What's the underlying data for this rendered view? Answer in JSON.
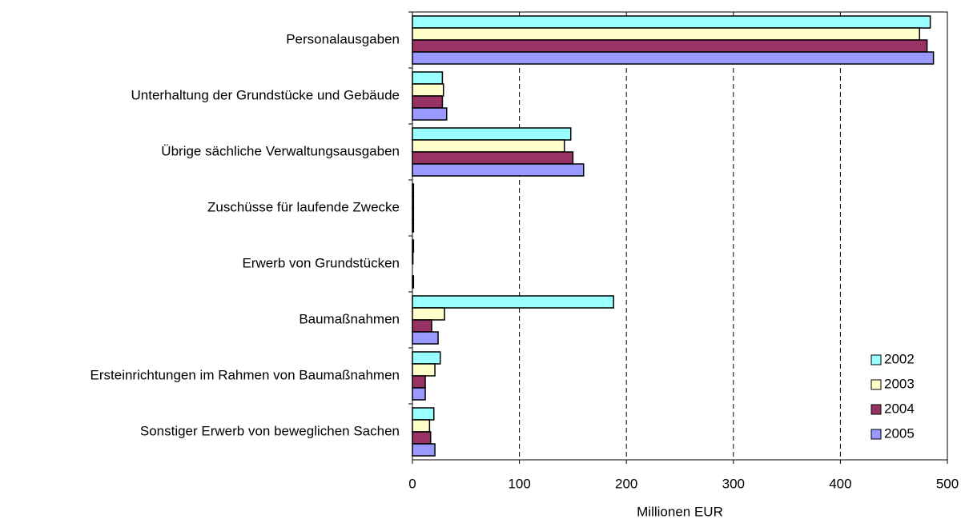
{
  "chart_data": {
    "type": "hbar",
    "x_label": "Millionen EUR",
    "categories": [
      "Personalausgaben",
      "Unterhaltung der Grundstücke und Gebäude",
      "Übrige sächliche Verwaltungsausgaben",
      "Zuschüsse für laufende Zwecke",
      "Erwerb von Grundstücken",
      "Baumaßnahmen",
      "Ersteinrichtungen im Rahmen von Baumaßnahmen",
      "Sonstiger Erwerb von beweglichen Sachen"
    ],
    "series": [
      {
        "name": "2002",
        "color": "#99ffff",
        "values": [
          484,
          28,
          148,
          1,
          1,
          188,
          26,
          20
        ]
      },
      {
        "name": "2003",
        "color": "#ffffcc",
        "values": [
          474,
          29,
          142,
          1,
          0.5,
          30,
          21,
          16
        ]
      },
      {
        "name": "2004",
        "color": "#993366",
        "values": [
          481,
          28,
          150,
          1,
          0,
          18,
          12,
          17
        ]
      },
      {
        "name": "2005",
        "color": "#9999ff",
        "values": [
          487,
          32,
          160,
          1,
          1,
          24,
          12,
          21
        ]
      }
    ],
    "xlim": [
      0,
      500
    ],
    "xticks": [
      0,
      100,
      200,
      300,
      400,
      500
    ],
    "grid": true,
    "legend": "lower right"
  }
}
